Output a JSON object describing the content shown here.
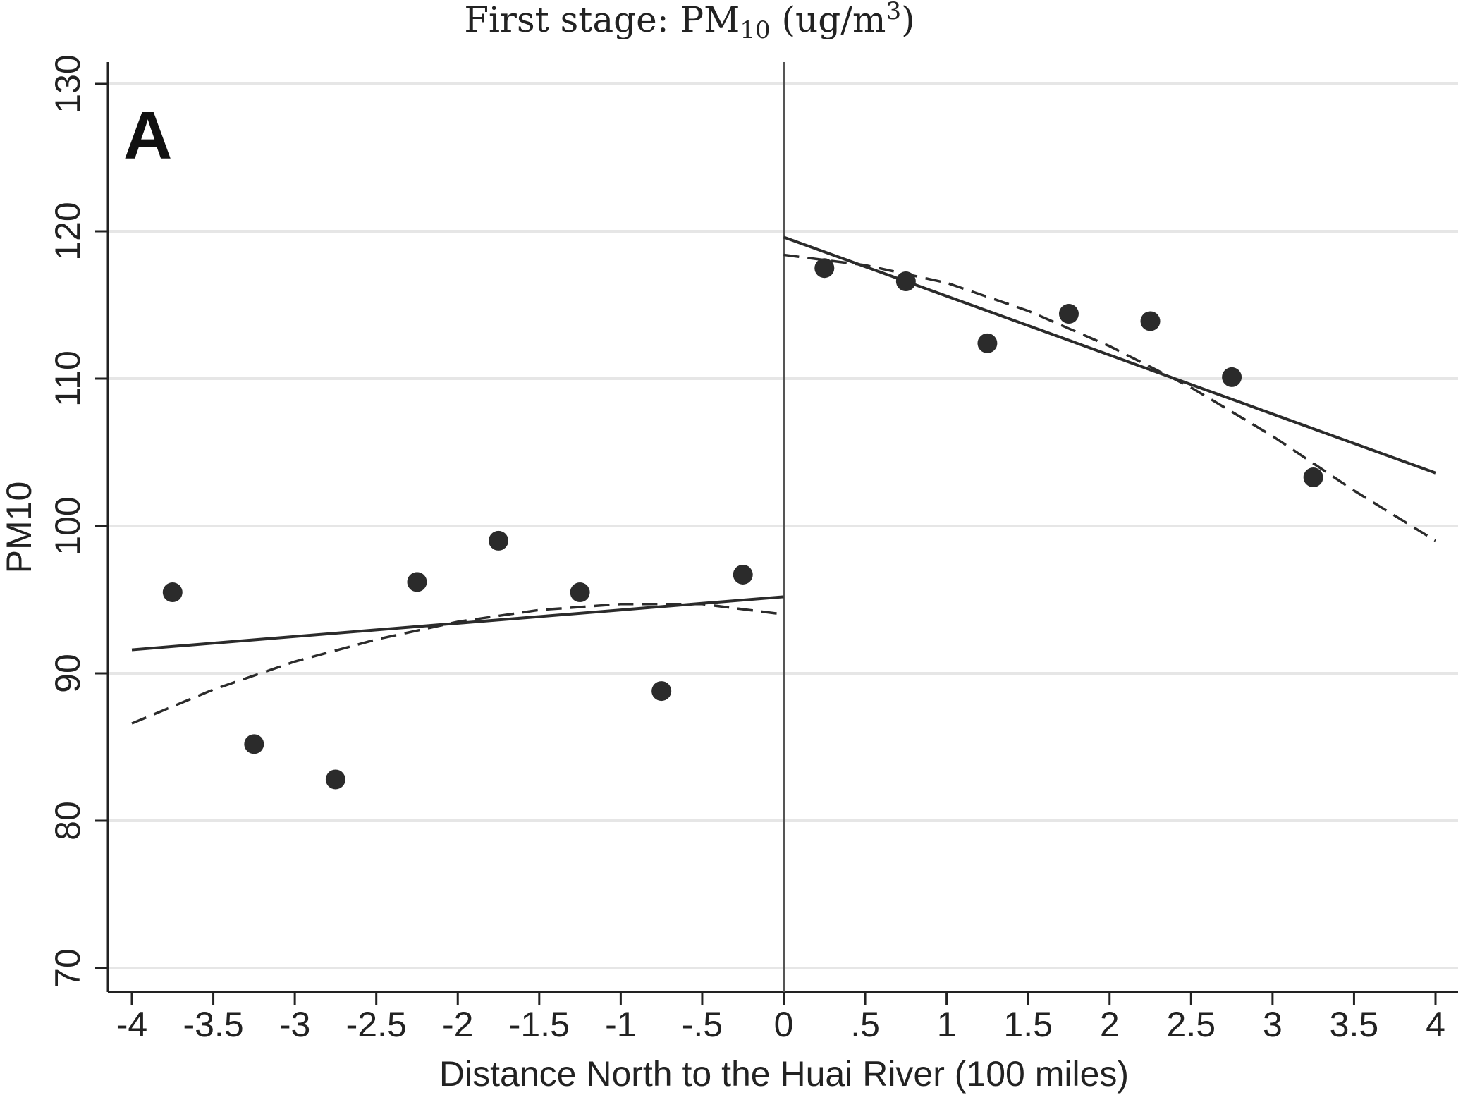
{
  "chart_data": {
    "type": "scatter",
    "title": "First stage: PM",
    "title_subscript": "10",
    "title_unit_prefix": " (ug/m",
    "title_unit_superscript": "3",
    "title_unit_suffix": ")",
    "panel_label": "A",
    "xlabel": "Distance North to the Huai River (100 miles)",
    "ylabel": "PM10",
    "xlim": [
      -4,
      4
    ],
    "ylim": [
      70,
      130
    ],
    "x_ticks": [
      -4,
      -3.5,
      -3,
      -2.5,
      -2,
      -1.5,
      -1,
      -0.5,
      0,
      0.5,
      1,
      1.5,
      2,
      2.5,
      3,
      3.5,
      4
    ],
    "x_tick_labels": [
      "-4",
      "-3.5",
      "-3",
      "-2.5",
      "-2",
      "-1.5",
      "-1",
      "-.5",
      "0",
      ".5",
      "1",
      "1.5",
      "2",
      "2.5",
      "3",
      "3.5",
      "4"
    ],
    "y_ticks": [
      70,
      80,
      90,
      100,
      110,
      120,
      130
    ],
    "y_tick_labels": [
      "70",
      "80",
      "90",
      "100",
      "110",
      "120",
      "130"
    ],
    "grid": "horizontal",
    "cutoff_x": 0,
    "points": {
      "x": [
        -3.75,
        -3.25,
        -2.75,
        -2.25,
        -1.75,
        -1.25,
        -0.75,
        -0.25,
        0.25,
        0.75,
        1.25,
        1.75,
        2.25,
        2.75,
        3.25
      ],
      "y": [
        95.5,
        85.2,
        82.8,
        96.2,
        99.0,
        95.5,
        88.8,
        96.7,
        117.5,
        116.6,
        112.4,
        114.4,
        113.9,
        110.1,
        103.3
      ]
    },
    "linear_fit": [
      {
        "x": [
          -4,
          0
        ],
        "y": [
          91.6,
          95.2
        ]
      },
      {
        "x": [
          0,
          4
        ],
        "y": [
          119.6,
          103.6
        ]
      }
    ],
    "quadratic_fit": [
      {
        "x": [
          -4.0,
          -3.5,
          -3.0,
          -2.5,
          -2.0,
          -1.5,
          -1.0,
          -0.5,
          0.0
        ],
        "y": [
          86.6,
          88.9,
          90.8,
          92.3,
          93.5,
          94.3,
          94.7,
          94.7,
          94.0
        ]
      },
      {
        "x": [
          0.0,
          0.5,
          1.0,
          1.5,
          2.0,
          2.5,
          3.0,
          3.5,
          4.0
        ],
        "y": [
          118.4,
          117.7,
          116.5,
          114.6,
          112.2,
          109.4,
          106.1,
          102.4,
          99.0
        ]
      }
    ],
    "colors": {
      "points": "#2b2b2b",
      "fit": "#2b2b2b",
      "grid": "#e6e6e6",
      "axis": "#222222",
      "cutoff": "#555555"
    }
  }
}
